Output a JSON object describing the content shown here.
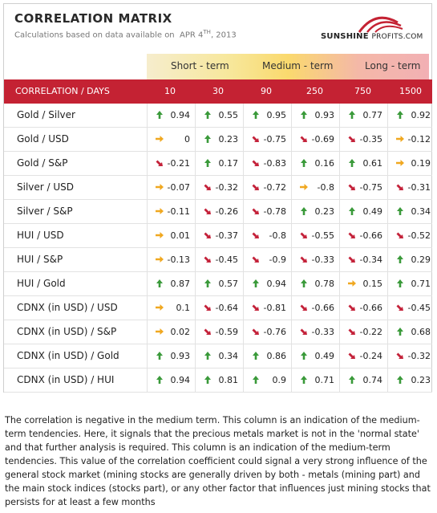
{
  "title": "CORRELATION MATRIX",
  "subtitle": {
    "prefix": "Calculations based on data available on",
    "date_main": "APR 4",
    "date_sup": "TH",
    "date_year": ", 2013"
  },
  "logo": {
    "bold": "SUNSHINE",
    "thin": "PROFITS",
    "suffix": ".COM"
  },
  "term_groups": [
    "Short - term",
    "Medium - term",
    "Long - term"
  ],
  "colors": {
    "header_red": "#c42233",
    "up": "#3a9a3a",
    "flat": "#f0a820",
    "down": "#c4223a"
  },
  "chart_data": {
    "type": "table",
    "row_header": "CORRELATION / DAYS",
    "columns": [
      "10",
      "30",
      "90",
      "250",
      "750",
      "1500"
    ],
    "rows": [
      {
        "label": "Gold / Silver",
        "values": [
          "0.94",
          "0.55",
          "0.95",
          "0.93",
          "0.77",
          "0.92"
        ],
        "trend": [
          "up",
          "up",
          "up",
          "up",
          "up",
          "up"
        ]
      },
      {
        "label": "Gold / USD",
        "values": [
          "0",
          "0.23",
          "-0.75",
          "-0.69",
          "-0.35",
          "-0.12"
        ],
        "trend": [
          "flat",
          "up",
          "down",
          "down",
          "down",
          "flat"
        ]
      },
      {
        "label": "Gold / S&P",
        "values": [
          "-0.21",
          "0.17",
          "-0.83",
          "0.16",
          "0.61",
          "0.19"
        ],
        "trend": [
          "down",
          "up",
          "down",
          "up",
          "up",
          "flat"
        ]
      },
      {
        "label": "Silver / USD",
        "values": [
          "-0.07",
          "-0.32",
          "-0.72",
          "-0.8",
          "-0.75",
          "-0.31"
        ],
        "trend": [
          "flat",
          "down",
          "down",
          "flat",
          "down",
          "down"
        ]
      },
      {
        "label": "Silver / S&P",
        "values": [
          "-0.11",
          "-0.26",
          "-0.78",
          "0.23",
          "0.49",
          "0.34"
        ],
        "trend": [
          "flat",
          "down",
          "down",
          "up",
          "up",
          "up"
        ]
      },
      {
        "label": "HUI / USD",
        "values": [
          "0.01",
          "-0.37",
          "-0.8",
          "-0.55",
          "-0.66",
          "-0.52"
        ],
        "trend": [
          "flat",
          "down",
          "down",
          "down",
          "down",
          "down"
        ]
      },
      {
        "label": "HUI / S&P",
        "values": [
          "-0.13",
          "-0.45",
          "-0.9",
          "-0.33",
          "-0.34",
          "0.29"
        ],
        "trend": [
          "flat",
          "down",
          "down",
          "down",
          "down",
          "up"
        ]
      },
      {
        "label": "HUI / Gold",
        "values": [
          "0.87",
          "0.57",
          "0.94",
          "0.78",
          "0.15",
          "0.71"
        ],
        "trend": [
          "up",
          "up",
          "up",
          "up",
          "flat",
          "up"
        ]
      },
      {
        "label": "CDNX (in USD) / USD",
        "values": [
          "0.1",
          "-0.64",
          "-0.81",
          "-0.66",
          "-0.66",
          "-0.45"
        ],
        "trend": [
          "flat",
          "down",
          "down",
          "down",
          "down",
          "down"
        ]
      },
      {
        "label": "CDNX (in USD) / S&P",
        "values": [
          "0.02",
          "-0.59",
          "-0.76",
          "-0.33",
          "-0.22",
          "0.68"
        ],
        "trend": [
          "flat",
          "down",
          "down",
          "down",
          "down",
          "up"
        ]
      },
      {
        "label": "CDNX (in USD) / Gold",
        "values": [
          "0.93",
          "0.34",
          "0.86",
          "0.49",
          "-0.24",
          "-0.32"
        ],
        "trend": [
          "up",
          "up",
          "up",
          "up",
          "down",
          "down"
        ]
      },
      {
        "label": "CDNX (in USD) / HUI",
        "values": [
          "0.94",
          "0.81",
          "0.9",
          "0.71",
          "0.74",
          "0.23"
        ],
        "trend": [
          "up",
          "up",
          "up",
          "up",
          "up",
          "up"
        ]
      }
    ]
  },
  "note": "The correlation is negative in the medium term. This column is an indication of the medium-term tendencies. Here, it signals that the precious metals market is not in the 'normal state' and that further analysis is required. This column is an indication of the medium-term tendencies. This value of the correlation coefficient could signal a very strong influence of the general stock market (mining stocks are generally driven by both - metals (mining part) and the main stock indices (stocks part), or any other factor that influences just mining stocks that persists for at least a few months"
}
